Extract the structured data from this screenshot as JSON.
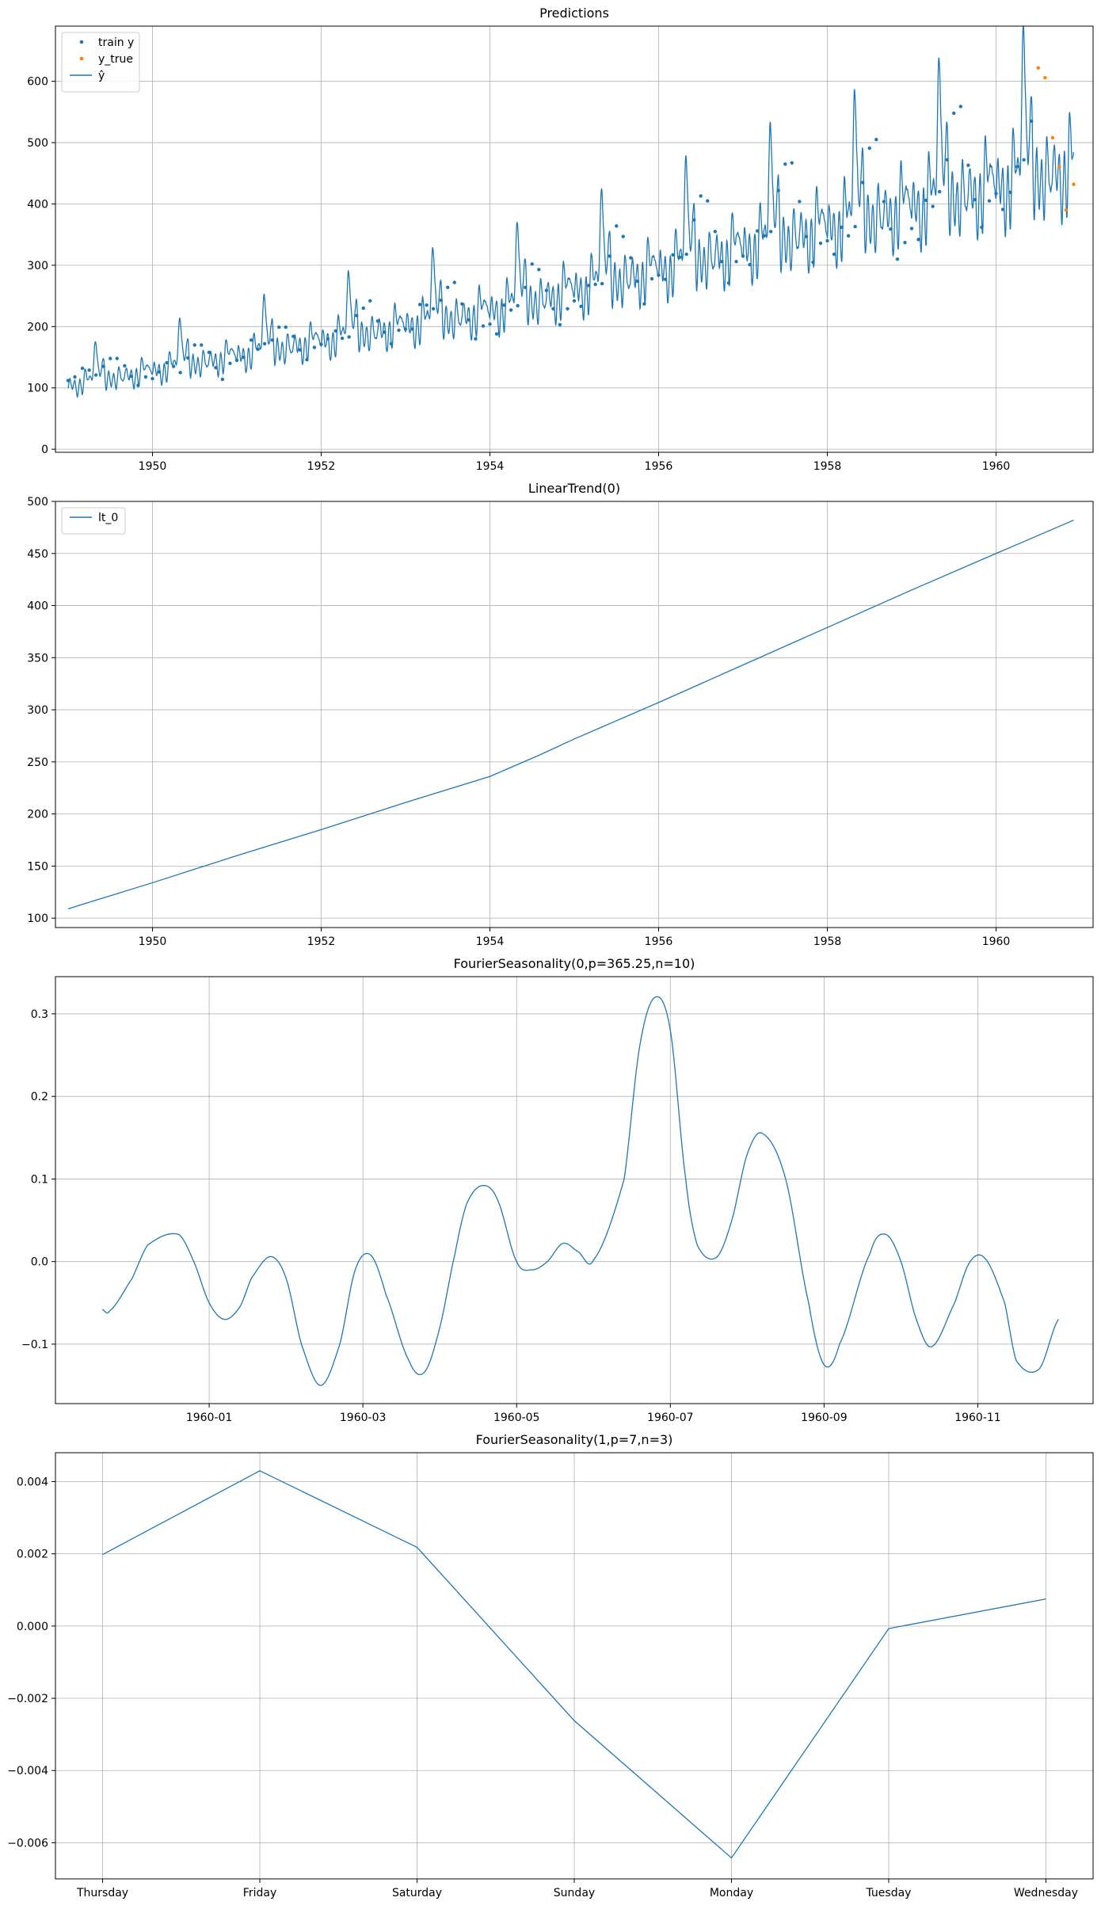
{
  "chart_data": [
    {
      "type": "line",
      "title": "Predictions",
      "xlabel": "",
      "ylabel": "",
      "xlim": [
        1948.85,
        1961.15
      ],
      "ylim": [
        -5,
        690
      ],
      "xticks": [
        1950,
        1952,
        1954,
        1956,
        1958,
        1960
      ],
      "xtick_labels": [
        "1950",
        "1952",
        "1954",
        "1956",
        "1958",
        "1960"
      ],
      "yticks": [
        0,
        100,
        200,
        300,
        400,
        500,
        600
      ],
      "ytick_labels": [
        "0",
        "100",
        "200",
        "300",
        "400",
        "500",
        "600"
      ],
      "grid": true,
      "legend_loc": "upper-left",
      "legend": [
        "train y",
        "y_true",
        "ŷ"
      ],
      "series": [
        {
          "name": "train y",
          "kind": "scatter",
          "color": "#1f77b4",
          "x": [
            1949.0,
            1949.08,
            1949.17,
            1949.25,
            1949.33,
            1949.42,
            1949.5,
            1949.58,
            1949.67,
            1949.75,
            1949.83,
            1949.92,
            1950.0,
            1950.08,
            1950.17,
            1950.25,
            1950.33,
            1950.42,
            1950.5,
            1950.58,
            1950.67,
            1950.75,
            1950.83,
            1950.92,
            1951.0,
            1951.08,
            1951.17,
            1951.25,
            1951.33,
            1951.42,
            1951.5,
            1951.58,
            1951.67,
            1951.75,
            1951.83,
            1951.92,
            1952.0,
            1952.08,
            1952.17,
            1952.25,
            1952.33,
            1952.42,
            1952.5,
            1952.58,
            1952.67,
            1952.75,
            1952.83,
            1952.92,
            1953.0,
            1953.08,
            1953.17,
            1953.25,
            1953.33,
            1953.42,
            1953.5,
            1953.58,
            1953.67,
            1953.75,
            1953.83,
            1953.92,
            1954.0,
            1954.08,
            1954.17,
            1954.25,
            1954.33,
            1954.42,
            1954.5,
            1954.58,
            1954.67,
            1954.75,
            1954.83,
            1954.92,
            1955.0,
            1955.08,
            1955.17,
            1955.25,
            1955.33,
            1955.42,
            1955.5,
            1955.58,
            1955.67,
            1955.75,
            1955.83,
            1955.92,
            1956.0,
            1956.08,
            1956.17,
            1956.25,
            1956.33,
            1956.42,
            1956.5,
            1956.58,
            1956.67,
            1956.75,
            1956.83,
            1956.92,
            1957.0,
            1957.08,
            1957.17,
            1957.25,
            1957.33,
            1957.42,
            1957.5,
            1957.58,
            1957.67,
            1957.75,
            1957.83,
            1957.92,
            1958.0,
            1958.08,
            1958.17,
            1958.25,
            1958.33,
            1958.42,
            1958.5,
            1958.58,
            1958.67,
            1958.75,
            1958.83,
            1958.92,
            1959.0,
            1959.08,
            1959.17,
            1959.25,
            1959.33,
            1959.42,
            1959.5,
            1959.58,
            1959.67,
            1959.75,
            1959.83,
            1959.92,
            1960.0,
            1960.08,
            1960.17,
            1960.25,
            1960.33,
            1960.42
          ],
          "y": [
            112,
            118,
            132,
            129,
            121,
            135,
            148,
            148,
            136,
            119,
            104,
            118,
            115,
            126,
            141,
            135,
            125,
            149,
            170,
            170,
            158,
            133,
            114,
            140,
            145,
            150,
            178,
            163,
            172,
            178,
            199,
            199,
            184,
            162,
            146,
            166,
            171,
            180,
            193,
            181,
            183,
            218,
            230,
            242,
            209,
            191,
            172,
            194,
            196,
            196,
            236,
            235,
            229,
            243,
            264,
            272,
            237,
            211,
            180,
            201,
            204,
            188,
            235,
            227,
            234,
            264,
            302,
            293,
            259,
            229,
            203,
            229,
            242,
            233,
            267,
            269,
            270,
            315,
            364,
            347,
            312,
            274,
            237,
            278,
            284,
            277,
            317,
            313,
            318,
            374,
            413,
            405,
            355,
            306,
            271,
            306,
            315,
            301,
            356,
            348,
            355,
            422,
            465,
            467,
            404,
            347,
            305,
            336,
            340,
            318,
            362,
            348,
            363,
            435,
            491,
            505,
            404,
            359,
            310,
            337,
            360,
            342,
            406,
            396,
            420,
            472,
            548,
            559,
            463,
            407,
            362,
            405,
            417,
            391,
            419,
            461,
            472,
            535
          ]
        },
        {
          "name": "y_true",
          "kind": "scatter",
          "color": "#ff7f0e",
          "x": [
            1960.5,
            1960.58,
            1960.67,
            1960.75,
            1960.83,
            1960.92
          ],
          "y": [
            622,
            606,
            508,
            461,
            390,
            432
          ]
        },
        {
          "name": "ŷ",
          "kind": "line",
          "color": "#1f77b4",
          "model": "trend plus yearly and weekly seasonality, sampled daily 1949-01-01 to 1960-12-31",
          "trend_x": [
            1949.0,
            1950.0,
            1951.0,
            1952.0,
            1953.0,
            1954.0,
            1954.6,
            1955.0,
            1956.0,
            1957.0,
            1958.0,
            1959.0,
            1960.0,
            1960.92
          ],
          "trend_y": [
            109,
            134,
            160,
            185,
            211,
            236,
            257,
            272,
            307,
            343,
            379,
            415,
            450,
            482
          ],
          "season_x": [
            0,
            0.02,
            0.05,
            0.08,
            0.11,
            0.14,
            0.17,
            0.2,
            0.23,
            0.26,
            0.29,
            0.32,
            0.35,
            0.38,
            0.42,
            0.45,
            0.48,
            0.51,
            0.54,
            0.57,
            0.6,
            0.63,
            0.66,
            0.69,
            0.72,
            0.75,
            0.78,
            0.81,
            0.84,
            0.87,
            0.9,
            0.93,
            0.96,
            1.0
          ],
          "season_y": [
            -0.058,
            0.033,
            -0.07,
            0.006,
            -0.15,
            0.008,
            -0.134,
            0.092,
            -0.01,
            0.022,
            0.002,
            0.32,
            0.15,
            0.005,
            0.155,
            -0.125,
            0.033,
            -0.103,
            0.003,
            -0.13,
            0.05,
            -0.052,
            -0.06,
            0.03,
            -0.07,
            0.005,
            -0.148,
            0.008,
            -0.133,
            0.09,
            -0.01,
            0.022,
            0.002,
            -0.058
          ],
          "weekly_amplitude": 0.0055
        }
      ]
    },
    {
      "type": "line",
      "title": "LinearTrend(0)",
      "xlabel": "",
      "ylabel": "",
      "xlim": [
        1948.85,
        1961.15
      ],
      "ylim": [
        91,
        500
      ],
      "xticks": [
        1950,
        1952,
        1954,
        1956,
        1958,
        1960
      ],
      "xtick_labels": [
        "1950",
        "1952",
        "1954",
        "1956",
        "1958",
        "1960"
      ],
      "yticks": [
        100,
        150,
        200,
        250,
        300,
        350,
        400,
        450,
        500
      ],
      "ytick_labels": [
        "100",
        "150",
        "200",
        "250",
        "300",
        "350",
        "400",
        "450",
        "500"
      ],
      "grid": true,
      "legend_loc": "upper-left",
      "legend": [
        "lt_0"
      ],
      "series": [
        {
          "name": "lt_0",
          "color": "#1f77b4",
          "x": [
            1949.0,
            1950.0,
            1951.0,
            1952.0,
            1953.0,
            1954.0,
            1954.6,
            1955.0,
            1956.0,
            1957.0,
            1958.0,
            1959.0,
            1960.0,
            1960.92
          ],
          "y": [
            109,
            134,
            160,
            185,
            211,
            236,
            257,
            272,
            307,
            343,
            379,
            415,
            450,
            482
          ]
        }
      ]
    },
    {
      "type": "line",
      "title": "FourierSeasonality(0,p=365.25,n=10)",
      "xlabel": "",
      "ylabel": "",
      "xlim": [
        -1.0,
        12.5
      ],
      "ylim": [
        -0.172,
        0.345
      ],
      "xticks": [
        1,
        3,
        5,
        7,
        9,
        11
      ],
      "xtick_labels": [
        "1960-01",
        "1960-03",
        "1960-05",
        "1960-07",
        "1960-09",
        "1960-11"
      ],
      "yticks": [
        -0.1,
        0.0,
        0.1,
        0.2,
        0.3
      ],
      "ytick_labels": [
        "−0.1",
        "0.0",
        "0.1",
        "0.2",
        "0.3"
      ],
      "grid": true,
      "series": [
        {
          "name": "",
          "color": "#1f77b4",
          "x": [
            -0.39,
            -0.3,
            0.0,
            0.2,
            0.6,
            0.8,
            1.0,
            1.2,
            1.4,
            1.55,
            1.8,
            2.0,
            2.2,
            2.45,
            2.7,
            2.9,
            3.1,
            3.3,
            3.6,
            3.8,
            4.0,
            4.2,
            4.35,
            4.55,
            4.75,
            5.0,
            5.2,
            5.4,
            5.6,
            5.8,
            6.0,
            6.4,
            6.6,
            6.8,
            7.0,
            7.2,
            7.35,
            7.6,
            7.8,
            8.0,
            8.2,
            8.5,
            8.8,
            9.0,
            9.2,
            9.6,
            9.8,
            10.0,
            10.2,
            10.4,
            10.7,
            10.9,
            11.1,
            11.35,
            11.5,
            11.8,
            12.05
          ],
          "y": [
            -0.058,
            -0.06,
            -0.02,
            0.02,
            0.033,
            0.0,
            -0.05,
            -0.07,
            -0.055,
            -0.02,
            0.006,
            -0.02,
            -0.1,
            -0.15,
            -0.1,
            -0.01,
            0.008,
            -0.04,
            -0.12,
            -0.134,
            -0.08,
            0.01,
            0.07,
            0.092,
            0.075,
            0.0,
            -0.01,
            0.0,
            0.022,
            0.012,
            0.002,
            0.1,
            0.26,
            0.32,
            0.28,
            0.1,
            0.02,
            0.005,
            0.05,
            0.13,
            0.155,
            0.1,
            -0.05,
            -0.125,
            -0.1,
            0.01,
            0.033,
            0.0,
            -0.07,
            -0.103,
            -0.05,
            0.0,
            0.003,
            -0.05,
            -0.12,
            -0.13,
            -0.07
          ]
        }
      ]
    },
    {
      "type": "line",
      "title": "FourierSeasonality(1,p=7,n=3)",
      "xlabel": "",
      "ylabel": "",
      "xlim": [
        -0.3,
        6.3
      ],
      "ylim": [
        -0.007,
        0.0048
      ],
      "categories": [
        "Thursday",
        "Friday",
        "Saturday",
        "Sunday",
        "Monday",
        "Tuesday",
        "Wednesday"
      ],
      "yticks": [
        -0.006,
        -0.004,
        -0.002,
        0.0,
        0.002,
        0.004
      ],
      "ytick_labels": [
        "−0.006",
        "−0.004",
        "−0.002",
        "0.000",
        "0.002",
        "0.004"
      ],
      "grid": true,
      "series": [
        {
          "name": "",
          "color": "#1f77b4",
          "x": [
            0,
            1,
            2,
            3,
            4,
            5,
            6
          ],
          "y": [
            0.00198,
            0.0043,
            0.00218,
            -0.00262,
            -0.00642,
            -7e-05,
            0.00075
          ]
        }
      ]
    }
  ]
}
